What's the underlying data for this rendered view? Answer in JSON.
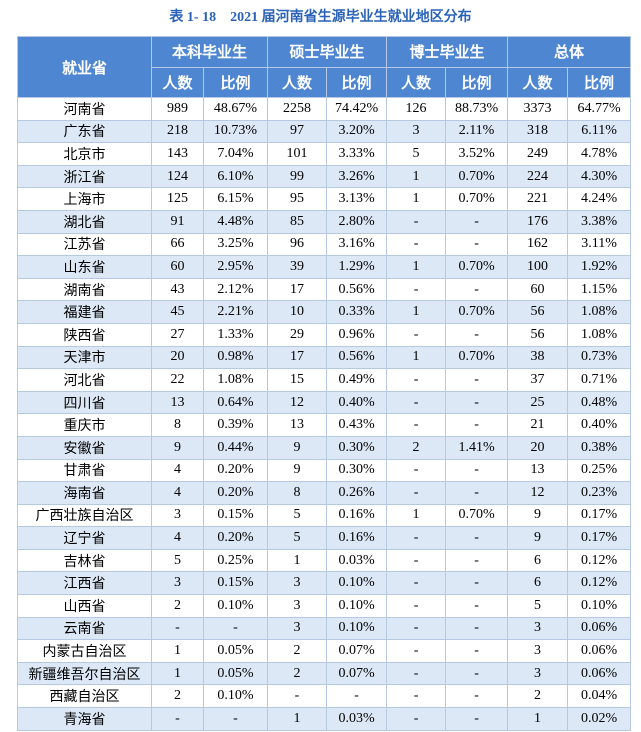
{
  "header": {
    "title": "表 1- 18　2021 届河南省生源毕业生就业地区分布"
  },
  "table": {
    "corner": "就业省",
    "groups": [
      "本科毕业生",
      "硕士毕业生",
      "博士毕业生",
      "总体"
    ],
    "sub_headers": [
      "人数",
      "比例",
      "人数",
      "比例",
      "人数",
      "比例",
      "人数",
      "比例"
    ],
    "rows": [
      [
        "河南省",
        "989",
        "48.67%",
        "2258",
        "74.42%",
        "126",
        "88.73%",
        "3373",
        "64.77%"
      ],
      [
        "广东省",
        "218",
        "10.73%",
        "97",
        "3.20%",
        "3",
        "2.11%",
        "318",
        "6.11%"
      ],
      [
        "北京市",
        "143",
        "7.04%",
        "101",
        "3.33%",
        "5",
        "3.52%",
        "249",
        "4.78%"
      ],
      [
        "浙江省",
        "124",
        "6.10%",
        "99",
        "3.26%",
        "1",
        "0.70%",
        "224",
        "4.30%"
      ],
      [
        "上海市",
        "125",
        "6.15%",
        "95",
        "3.13%",
        "1",
        "0.70%",
        "221",
        "4.24%"
      ],
      [
        "湖北省",
        "91",
        "4.48%",
        "85",
        "2.80%",
        "-",
        "-",
        "176",
        "3.38%"
      ],
      [
        "江苏省",
        "66",
        "3.25%",
        "96",
        "3.16%",
        "-",
        "-",
        "162",
        "3.11%"
      ],
      [
        "山东省",
        "60",
        "2.95%",
        "39",
        "1.29%",
        "1",
        "0.70%",
        "100",
        "1.92%"
      ],
      [
        "湖南省",
        "43",
        "2.12%",
        "17",
        "0.56%",
        "-",
        "-",
        "60",
        "1.15%"
      ],
      [
        "福建省",
        "45",
        "2.21%",
        "10",
        "0.33%",
        "1",
        "0.70%",
        "56",
        "1.08%"
      ],
      [
        "陕西省",
        "27",
        "1.33%",
        "29",
        "0.96%",
        "-",
        "-",
        "56",
        "1.08%"
      ],
      [
        "天津市",
        "20",
        "0.98%",
        "17",
        "0.56%",
        "1",
        "0.70%",
        "38",
        "0.73%"
      ],
      [
        "河北省",
        "22",
        "1.08%",
        "15",
        "0.49%",
        "-",
        "-",
        "37",
        "0.71%"
      ],
      [
        "四川省",
        "13",
        "0.64%",
        "12",
        "0.40%",
        "-",
        "-",
        "25",
        "0.48%"
      ],
      [
        "重庆市",
        "8",
        "0.39%",
        "13",
        "0.43%",
        "-",
        "-",
        "21",
        "0.40%"
      ],
      [
        "安徽省",
        "9",
        "0.44%",
        "9",
        "0.30%",
        "2",
        "1.41%",
        "20",
        "0.38%"
      ],
      [
        "甘肃省",
        "4",
        "0.20%",
        "9",
        "0.30%",
        "-",
        "-",
        "13",
        "0.25%"
      ],
      [
        "海南省",
        "4",
        "0.20%",
        "8",
        "0.26%",
        "-",
        "-",
        "12",
        "0.23%"
      ],
      [
        "广西壮族自治区",
        "3",
        "0.15%",
        "5",
        "0.16%",
        "1",
        "0.70%",
        "9",
        "0.17%"
      ],
      [
        "辽宁省",
        "4",
        "0.20%",
        "5",
        "0.16%",
        "-",
        "-",
        "9",
        "0.17%"
      ],
      [
        "吉林省",
        "5",
        "0.25%",
        "1",
        "0.03%",
        "-",
        "-",
        "6",
        "0.12%"
      ],
      [
        "江西省",
        "3",
        "0.15%",
        "3",
        "0.10%",
        "-",
        "-",
        "6",
        "0.12%"
      ],
      [
        "山西省",
        "2",
        "0.10%",
        "3",
        "0.10%",
        "-",
        "-",
        "5",
        "0.10%"
      ],
      [
        "云南省",
        "-",
        "-",
        "3",
        "0.10%",
        "-",
        "-",
        "3",
        "0.06%"
      ],
      [
        "内蒙古自治区",
        "1",
        "0.05%",
        "2",
        "0.07%",
        "-",
        "-",
        "3",
        "0.06%"
      ],
      [
        "新疆维吾尔自治区",
        "1",
        "0.05%",
        "2",
        "0.07%",
        "-",
        "-",
        "3",
        "0.06%"
      ],
      [
        "西藏自治区",
        "2",
        "0.10%",
        "-",
        "-",
        "-",
        "-",
        "2",
        "0.04%"
      ],
      [
        "青海省",
        "-",
        "-",
        "1",
        "0.03%",
        "-",
        "-",
        "1",
        "0.02%"
      ]
    ]
  }
}
